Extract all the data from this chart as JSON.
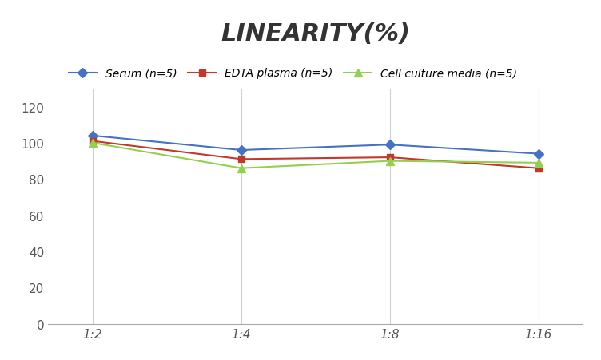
{
  "title": "LINEARITY(%)",
  "x_labels": [
    "1:2",
    "1:4",
    "1:8",
    "1:16"
  ],
  "x_positions": [
    0,
    1,
    2,
    3
  ],
  "series": [
    {
      "label": "Serum (n=5)",
      "values": [
        104,
        96,
        99,
        94
      ],
      "color": "#4472C4",
      "marker": "D",
      "markersize": 6,
      "linewidth": 1.5
    },
    {
      "label": "EDTA plasma (n=5)",
      "values": [
        101,
        91,
        92,
        86
      ],
      "color": "#C0392B",
      "marker": "s",
      "markersize": 6,
      "linewidth": 1.5
    },
    {
      "label": "Cell culture media (n=5)",
      "values": [
        100,
        86,
        90,
        89
      ],
      "color": "#92D050",
      "marker": "^",
      "markersize": 7,
      "linewidth": 1.5
    }
  ],
  "ylim": [
    0,
    130
  ],
  "yticks": [
    0,
    20,
    40,
    60,
    80,
    100,
    120
  ],
  "background_color": "#FFFFFF",
  "grid_color": "#D0D0D0",
  "title_fontsize": 22,
  "title_color": "#333333",
  "legend_fontsize": 10,
  "tick_fontsize": 11,
  "tick_color": "#555555"
}
